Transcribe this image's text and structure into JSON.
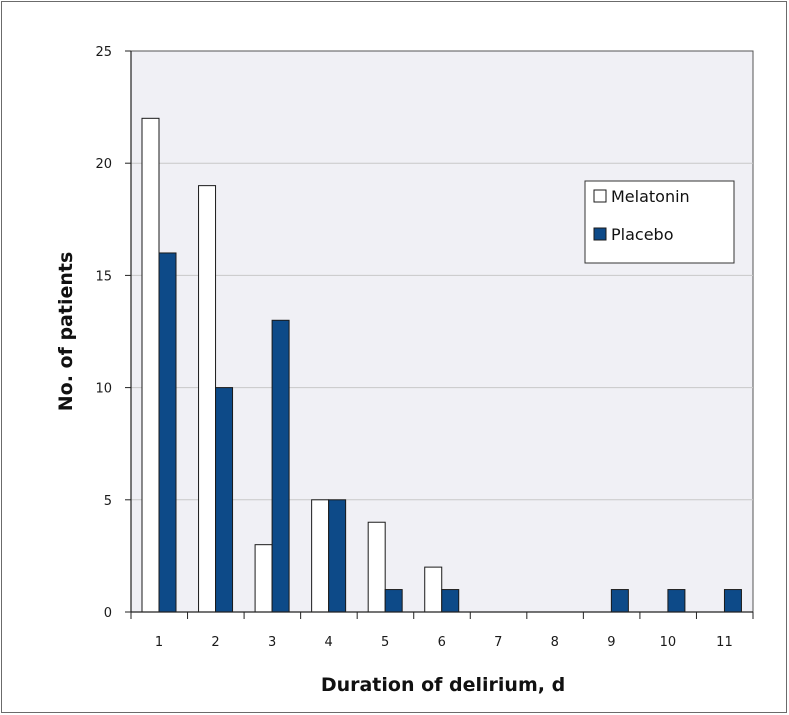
{
  "chart_data": {
    "type": "bar",
    "categories": [
      "1",
      "2",
      "3",
      "4",
      "5",
      "6",
      "7",
      "8",
      "9",
      "10",
      "11"
    ],
    "series": [
      {
        "name": "Melatonin",
        "values": [
          22,
          19,
          3,
          5,
          4,
          2,
          0,
          0,
          0,
          0,
          0
        ],
        "color": "#ffffff"
      },
      {
        "name": "Placebo",
        "values": [
          16,
          10,
          13,
          5,
          1,
          1,
          0,
          0,
          1,
          1,
          1
        ],
        "color": "#0d4a88"
      }
    ],
    "xlabel": "Duration of delirium, d",
    "ylabel": "No. of patients",
    "ylim": [
      0,
      25
    ],
    "yticks": [
      0,
      5,
      10,
      15,
      20,
      25
    ],
    "grid": true,
    "legend": "top-right",
    "plot_background": "#f0f0f5",
    "gridline_color": "#c8c8c8"
  }
}
